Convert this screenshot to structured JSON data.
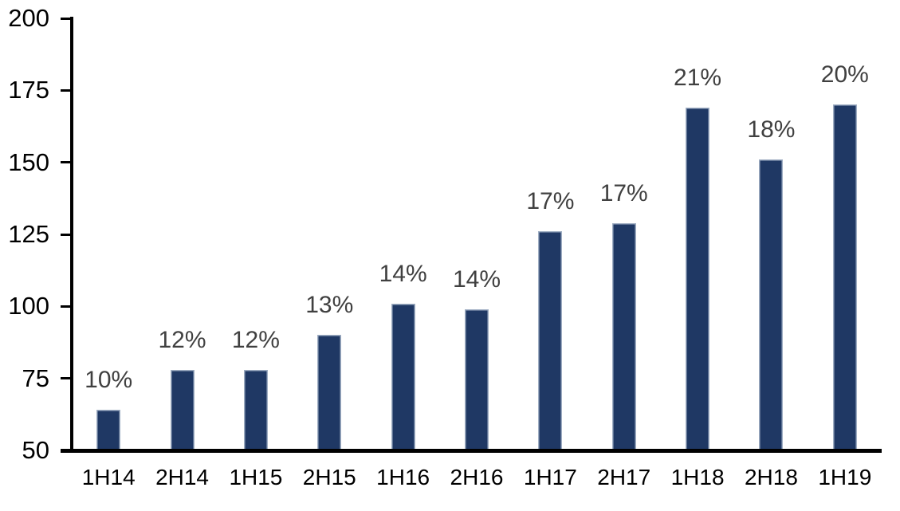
{
  "chart_data": {
    "type": "bar",
    "title": "",
    "xlabel": "",
    "ylabel": "",
    "categories": [
      "1H14",
      "2H14",
      "1H15",
      "2H15",
      "1H16",
      "2H16",
      "1H17",
      "2H17",
      "1H18",
      "2H18",
      "1H19"
    ],
    "values": [
      64,
      78,
      78,
      90,
      101,
      99,
      126,
      129,
      169,
      151,
      170
    ],
    "bar_labels": [
      "10%",
      "12%",
      "12%",
      "13%",
      "14%",
      "14%",
      "17%",
      "17%",
      "21%",
      "18%",
      "20%"
    ],
    "ylim": [
      50,
      200
    ],
    "yticks": [
      50,
      75,
      100,
      125,
      150,
      175,
      200
    ],
    "grid": false,
    "legend_position": "none",
    "colors": {
      "bar_fill": "#1F3864",
      "bar_border": "#9FAEC3",
      "bar_label_text": "#404040",
      "axis_text": "#000000",
      "axis_line": "#000000",
      "background": "#FFFFFF"
    }
  }
}
